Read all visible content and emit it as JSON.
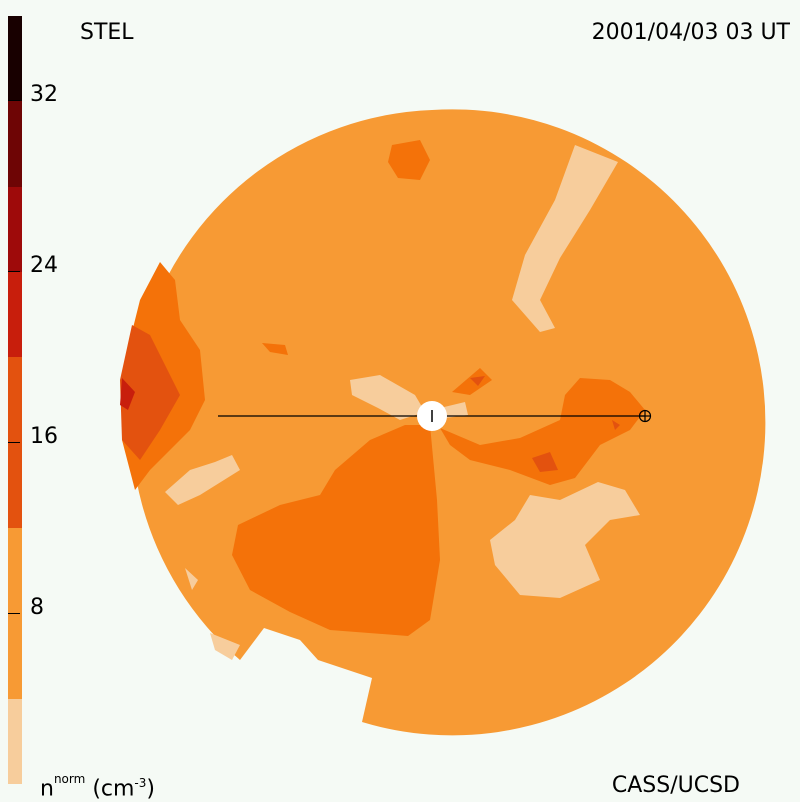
{
  "header": {
    "source": "STEL",
    "timestamp": "2001/04/03 03 UT"
  },
  "footer": {
    "credit": "CASS/UCSD",
    "unit_base": "n",
    "unit_sup": "norm",
    "unit_paren": "(cm",
    "unit_exp": "-3",
    "unit_close": ")"
  },
  "colorbar": {
    "labels": [
      "32",
      "24",
      "16",
      "8"
    ],
    "colors": [
      "#f7cd9c",
      "#f79a34",
      "#f47209",
      "#e3520f",
      "#c81e0c",
      "#9e0a0a",
      "#6e0505",
      "#3a0303",
      "#180000"
    ]
  },
  "map": {
    "background_level": "#f79a34"
  }
}
